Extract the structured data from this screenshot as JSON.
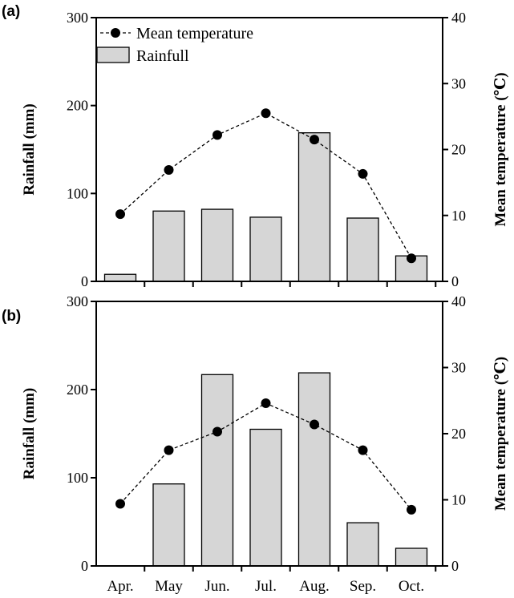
{
  "chart_data": [
    {
      "type": "bar+line",
      "panel_label": "(a)",
      "categories": [
        "Apr.",
        "May",
        "Jun.",
        "Jul.",
        "Aug.",
        "Sep.",
        "Oct."
      ],
      "show_category_labels": false,
      "series": [
        {
          "name": "Rainfull",
          "type": "bar",
          "axis": "left",
          "values": [
            8,
            80,
            82,
            73,
            169,
            72,
            29
          ]
        },
        {
          "name": "Mean temperature",
          "type": "line",
          "axis": "right",
          "values": [
            10.2,
            16.9,
            22.2,
            25.5,
            21.5,
            16.3,
            3.5
          ]
        }
      ],
      "ylabel": "Rainfall (mm)",
      "ylabel_right": "Mean temperature (℃)",
      "ylim": [
        0,
        300
      ],
      "ylim_right": [
        0,
        40
      ],
      "yticks": [
        "0",
        "100",
        "200",
        "300"
      ],
      "yticks_right": [
        "0",
        "10",
        "20",
        "30",
        "40"
      ],
      "legend": [
        {
          "label": "Mean temperature",
          "kind": "line"
        },
        {
          "label": "Rainfull",
          "kind": "bar"
        }
      ],
      "legend_position": "top-left"
    },
    {
      "type": "bar+line",
      "panel_label": "(b)",
      "categories": [
        "Apr.",
        "May",
        "Jun.",
        "Jul.",
        "Aug.",
        "Sep.",
        "Oct."
      ],
      "show_category_labels": true,
      "series": [
        {
          "name": "Rainfall",
          "type": "bar",
          "axis": "left",
          "values": [
            0,
            93,
            217,
            155,
            219,
            49,
            20
          ]
        },
        {
          "name": "Mean temperature",
          "type": "line",
          "axis": "right",
          "values": [
            9.4,
            17.5,
            20.3,
            24.6,
            21.4,
            17.5,
            8.5
          ]
        }
      ],
      "ylabel": "Rainfall (mm)",
      "ylabel_right": "Mean temperature (℃)",
      "ylim": [
        0,
        300
      ],
      "ylim_right": [
        0,
        40
      ],
      "yticks": [
        "0",
        "100",
        "200",
        "300"
      ],
      "yticks_right": [
        "0",
        "10",
        "20",
        "30",
        "40"
      ],
      "legend": []
    }
  ]
}
